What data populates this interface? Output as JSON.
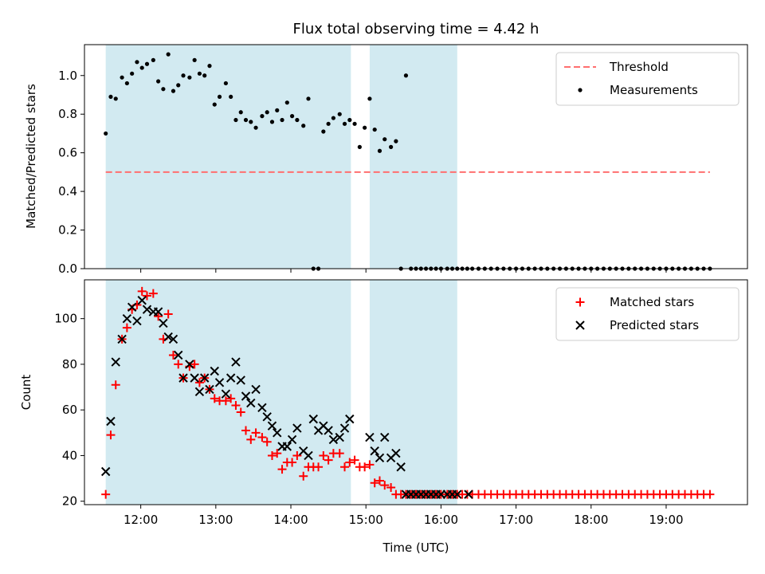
{
  "chart_data": [
    {
      "type": "scatter",
      "title": "Flux total observing time = 4.42 h",
      "xlabel": "",
      "ylabel": "Matched/Predicted stars",
      "ylim": [
        0,
        1.16
      ],
      "yticks": [
        "0.0",
        "0.2",
        "0.4",
        "0.6",
        "0.8",
        "1.0"
      ],
      "xlim": [
        "11:15",
        "20:05"
      ],
      "colors": {
        "shade": "#add8e6",
        "threshold": "#ff6f6f",
        "points": "#000000"
      },
      "shaded_intervals": [
        [
          "11:32",
          "14:48"
        ],
        [
          "15:03",
          "16:13"
        ]
      ],
      "legend": {
        "position": "top-right",
        "entries": [
          "Threshold",
          "Measurements"
        ]
      },
      "series": [
        {
          "name": "Threshold",
          "style": "dashed-line",
          "x": [
            "11:32",
            "19:35"
          ],
          "values": [
            0.5,
            0.5
          ]
        },
        {
          "name": "Measurements",
          "style": "points",
          "x": [
            "11:32",
            "11:36",
            "11:40",
            "11:45",
            "11:49",
            "11:53",
            "11:57",
            "12:01",
            "12:05",
            "12:10",
            "12:14",
            "12:18",
            "12:22",
            "12:26",
            "12:30",
            "12:34",
            "12:39",
            "12:43",
            "12:47",
            "12:51",
            "12:55",
            "12:59",
            "13:03",
            "13:08",
            "13:12",
            "13:16",
            "13:20",
            "13:24",
            "13:28",
            "13:32",
            "13:37",
            "13:41",
            "13:45",
            "13:49",
            "13:53",
            "13:57",
            "14:01",
            "14:05",
            "14:10",
            "14:14",
            "14:18",
            "14:22",
            "14:26",
            "14:30",
            "14:34",
            "14:39",
            "14:43",
            "14:47",
            "14:51",
            "14:55",
            "14:59",
            "15:03",
            "15:07",
            "15:11",
            "15:15",
            "15:20",
            "15:24",
            "15:28",
            "15:32",
            "15:36",
            "15:40",
            "15:44",
            "15:48",
            "15:52",
            "15:56",
            "16:00",
            "16:05",
            "16:09",
            "16:13",
            "16:17",
            "16:21",
            "16:25",
            "16:30",
            "16:35",
            "16:40",
            "16:45",
            "16:50",
            "16:55",
            "17:00",
            "17:05",
            "17:10",
            "17:15",
            "17:20",
            "17:25",
            "17:30",
            "17:35",
            "17:40",
            "17:45",
            "17:50",
            "17:55",
            "18:00",
            "18:05",
            "18:10",
            "18:15",
            "18:20",
            "18:25",
            "18:30",
            "18:35",
            "18:40",
            "18:45",
            "18:50",
            "18:55",
            "19:00",
            "19:05",
            "19:10",
            "19:15",
            "19:20",
            "19:25",
            "19:30",
            "19:35"
          ],
          "values": [
            0.7,
            0.89,
            0.88,
            0.99,
            0.96,
            1.01,
            1.07,
            1.04,
            1.06,
            1.08,
            0.97,
            0.93,
            1.11,
            0.92,
            0.95,
            1.0,
            0.99,
            1.08,
            1.01,
            1.0,
            1.05,
            0.85,
            0.89,
            0.96,
            0.89,
            0.77,
            0.81,
            0.77,
            0.76,
            0.73,
            0.79,
            0.81,
            0.76,
            0.82,
            0.77,
            0.86,
            0.79,
            0.77,
            0.74,
            0.88,
            0.0,
            0.0,
            0.71,
            0.75,
            0.78,
            0.8,
            0.75,
            0.77,
            0.75,
            0.63,
            0.73,
            0.88,
            0.72,
            0.61,
            0.67,
            0.63,
            0.66,
            0.0,
            1.0,
            0.0,
            0.0,
            0.0,
            0.0,
            0.0,
            0.0,
            0.0,
            0.0,
            0.0,
            0.0,
            0.0,
            0.0,
            0.0,
            0.0,
            0.0,
            0.0,
            0.0,
            0.0,
            0.0,
            0.0,
            0.0,
            0.0,
            0.0,
            0.0,
            0.0,
            0.0,
            0.0,
            0.0,
            0.0,
            0.0,
            0.0,
            0.0,
            0.0,
            0.0,
            0.0,
            0.0,
            0.0,
            0.0,
            0.0,
            0.0,
            0.0,
            0.0,
            0.0,
            0.0,
            0.0,
            0.0,
            0.0,
            0.0,
            0.0,
            0.0,
            0.0
          ]
        }
      ]
    },
    {
      "type": "scatter",
      "title": "",
      "xlabel": "Time (UTC)",
      "ylabel": "Count",
      "ylim": [
        18.5,
        117
      ],
      "yticks": [
        "20",
        "40",
        "60",
        "80",
        "100"
      ],
      "xlim": [
        "11:15",
        "20:05"
      ],
      "xticks": [
        "12:00",
        "13:00",
        "14:00",
        "15:00",
        "16:00",
        "17:00",
        "18:00",
        "19:00"
      ],
      "colors": {
        "shade": "#add8e6",
        "matched": "#ff0000",
        "predicted": "#000000"
      },
      "shaded_intervals": [
        [
          "11:32",
          "14:48"
        ],
        [
          "15:03",
          "16:13"
        ]
      ],
      "legend": {
        "position": "top-right",
        "entries": [
          "Matched stars",
          "Predicted stars"
        ]
      },
      "series": [
        {
          "name": "Matched stars",
          "marker": "+",
          "x": [
            "11:32",
            "11:36",
            "11:40",
            "11:45",
            "11:49",
            "11:53",
            "11:57",
            "12:01",
            "12:05",
            "12:10",
            "12:14",
            "12:18",
            "12:22",
            "12:26",
            "12:30",
            "12:34",
            "12:39",
            "12:43",
            "12:47",
            "12:51",
            "12:55",
            "12:59",
            "13:03",
            "13:08",
            "13:12",
            "13:16",
            "13:20",
            "13:24",
            "13:28",
            "13:32",
            "13:37",
            "13:41",
            "13:45",
            "13:49",
            "13:53",
            "13:57",
            "14:01",
            "14:05",
            "14:10",
            "14:14",
            "14:18",
            "14:22",
            "14:26",
            "14:30",
            "14:34",
            "14:39",
            "14:43",
            "14:47",
            "14:51",
            "14:55",
            "14:59",
            "15:03",
            "15:07",
            "15:11",
            "15:15",
            "15:20",
            "15:24",
            "15:28",
            "15:32",
            "15:36",
            "15:40",
            "15:44",
            "15:48",
            "15:52",
            "15:56",
            "16:00",
            "16:05",
            "16:09",
            "16:13",
            "16:17",
            "16:21",
            "16:25",
            "16:30",
            "16:35",
            "16:40",
            "16:45",
            "16:50",
            "16:55",
            "17:00",
            "17:05",
            "17:10",
            "17:15",
            "17:20",
            "17:25",
            "17:30",
            "17:35",
            "17:40",
            "17:45",
            "17:50",
            "17:55",
            "18:00",
            "18:05",
            "18:10",
            "18:15",
            "18:20",
            "18:25",
            "18:30",
            "18:35",
            "18:40",
            "18:45",
            "18:50",
            "18:55",
            "19:00",
            "19:05",
            "19:10",
            "19:15",
            "19:20",
            "19:25",
            "19:30",
            "19:35"
          ],
          "values": [
            23,
            49,
            71,
            91,
            96,
            104,
            106,
            112,
            110,
            111,
            101,
            91,
            102,
            84,
            80,
            74,
            79,
            80,
            72,
            74,
            69,
            65,
            64,
            64,
            65,
            62,
            59,
            51,
            47,
            50,
            48,
            46,
            40,
            41,
            34,
            37,
            37,
            40,
            31,
            35,
            35,
            35,
            40,
            38,
            41,
            41,
            35,
            37,
            38,
            35,
            35,
            36,
            28,
            29,
            27,
            26,
            23,
            23,
            23,
            23,
            23,
            23,
            23,
            23,
            23,
            23,
            23,
            23,
            23,
            23,
            23,
            23,
            23,
            23,
            23,
            23,
            23,
            23,
            23,
            23,
            23,
            23,
            23,
            23,
            23,
            23,
            23,
            23,
            23,
            23,
            23,
            23,
            23,
            23,
            23,
            23,
            23,
            23,
            23,
            23,
            23,
            23,
            23,
            23,
            23,
            23,
            23,
            23,
            23,
            23
          ]
        },
        {
          "name": "Predicted stars",
          "marker": "x",
          "x": [
            "11:32",
            "11:36",
            "11:40",
            "11:45",
            "11:49",
            "11:53",
            "11:57",
            "12:01",
            "12:05",
            "12:10",
            "12:14",
            "12:18",
            "12:22",
            "12:26",
            "12:30",
            "12:34",
            "12:39",
            "12:43",
            "12:47",
            "12:51",
            "12:55",
            "12:59",
            "13:03",
            "13:08",
            "13:12",
            "13:16",
            "13:20",
            "13:24",
            "13:28",
            "13:32",
            "13:37",
            "13:41",
            "13:45",
            "13:49",
            "13:53",
            "13:57",
            "14:01",
            "14:05",
            "14:10",
            "14:14",
            "14:18",
            "14:22",
            "14:26",
            "14:30",
            "14:34",
            "14:39",
            "14:43",
            "14:47",
            "15:03",
            "15:07",
            "15:11",
            "15:15",
            "15:20",
            "15:24",
            "15:28",
            "15:32",
            "15:36",
            "15:40",
            "15:44",
            "15:48",
            "15:52",
            "15:56",
            "16:00",
            "16:05",
            "16:09",
            "16:13",
            "16:22"
          ],
          "values": [
            33,
            55,
            81,
            91,
            100,
            105,
            99,
            108,
            104,
            103,
            103,
            98,
            92,
            91,
            84,
            74,
            80,
            74,
            68,
            74,
            69,
            77,
            72,
            67,
            74,
            81,
            73,
            66,
            63,
            69,
            61,
            57,
            53,
            50,
            44,
            44,
            47,
            52,
            42,
            40,
            56,
            51,
            53,
            51,
            47,
            48,
            52,
            56,
            48,
            42,
            39,
            48,
            39,
            41,
            35,
            23,
            23,
            23,
            23,
            23,
            23,
            23,
            23,
            23,
            23,
            23,
            23
          ]
        }
      ]
    }
  ]
}
